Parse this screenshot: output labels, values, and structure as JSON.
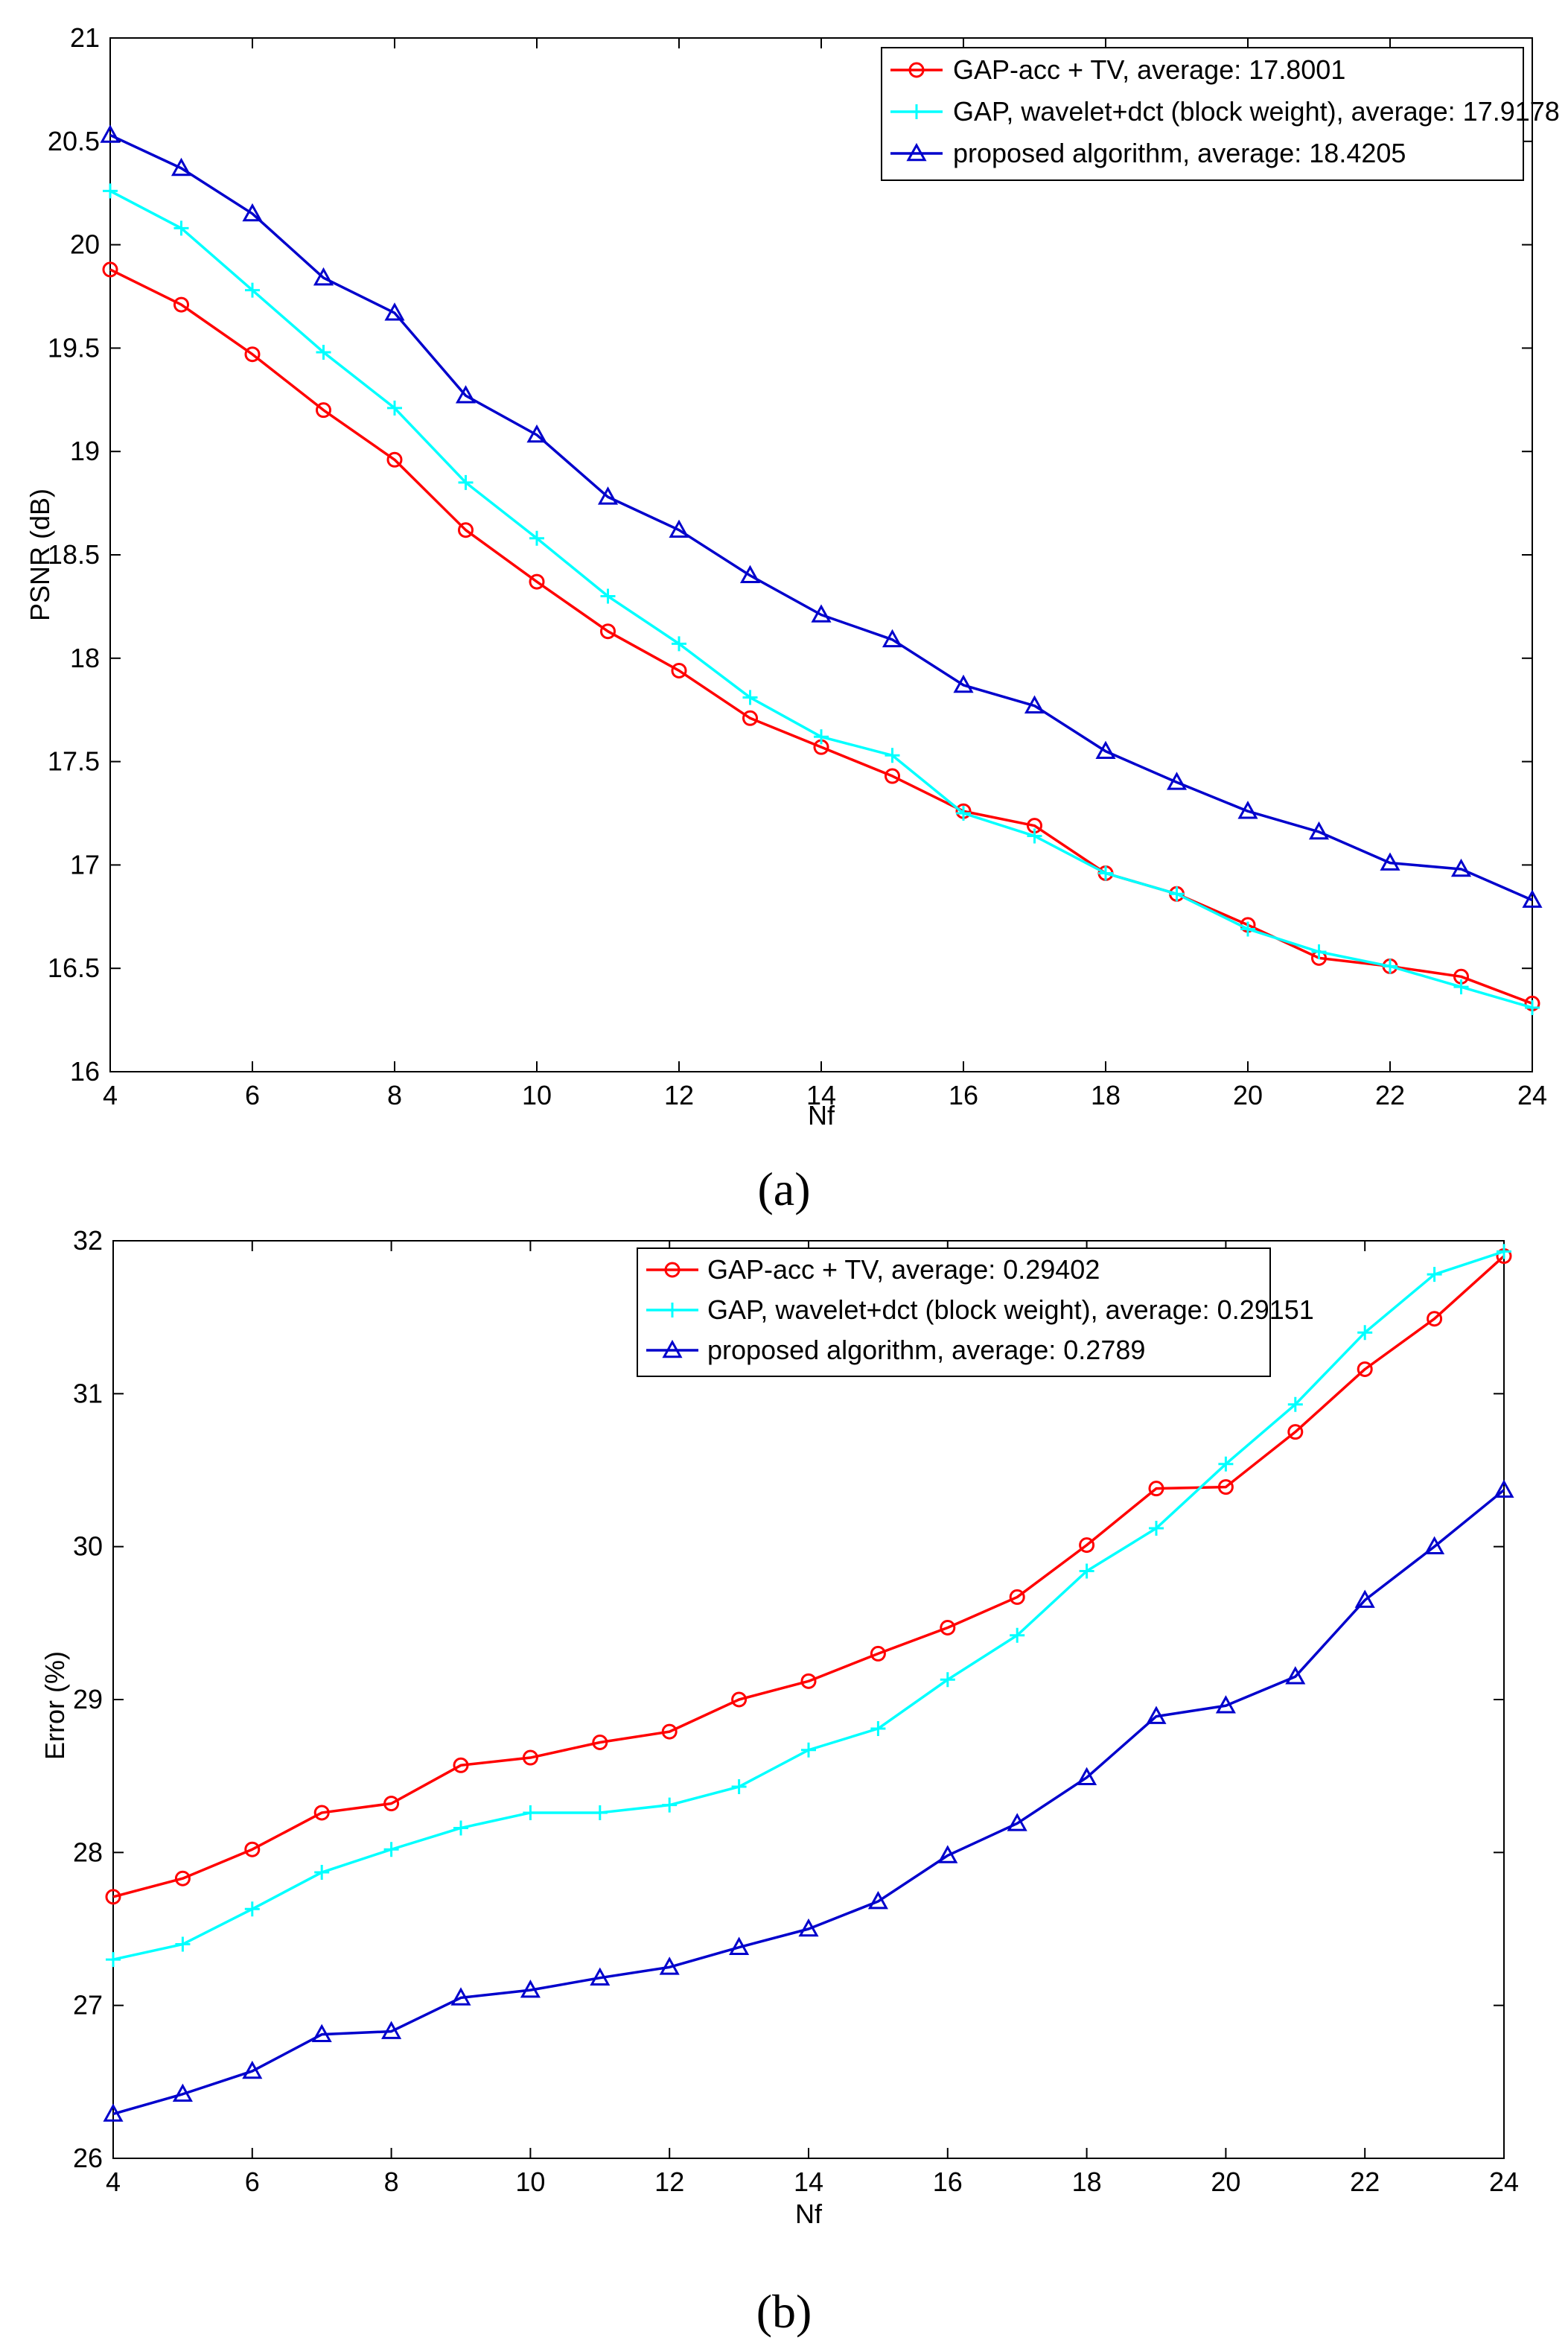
{
  "chart_data": [
    {
      "type": "line",
      "panel_label": "(a)",
      "title": "",
      "xlabel": "Nf",
      "ylabel": "PSNR (dB)",
      "xlim": [
        4,
        24
      ],
      "ylim": [
        16,
        21
      ],
      "xticks": [
        4,
        6,
        8,
        10,
        12,
        14,
        16,
        18,
        20,
        22,
        24
      ],
      "yticks": [
        16,
        16.5,
        17,
        17.5,
        18,
        18.5,
        19,
        19.5,
        20,
        20.5,
        21
      ],
      "ytick_labels": [
        "16",
        "16.5",
        "17",
        "17.5",
        "18",
        "18.5",
        "19",
        "19.5",
        "20",
        "20.5",
        "21"
      ],
      "legend_position": "top-right",
      "x": [
        4,
        5,
        6,
        7,
        8,
        9,
        10,
        11,
        12,
        13,
        14,
        15,
        16,
        17,
        18,
        19,
        20,
        21,
        22,
        23,
        24
      ],
      "series": [
        {
          "name": "GAP-acc + TV, average: 17.8001",
          "color": "#ff0000",
          "marker": "circle",
          "values": [
            19.88,
            19.71,
            19.47,
            19.2,
            18.96,
            18.62,
            18.37,
            18.13,
            17.94,
            17.71,
            17.57,
            17.43,
            17.26,
            17.19,
            16.96,
            16.86,
            16.71,
            16.55,
            16.51,
            16.46,
            16.33
          ]
        },
        {
          "name": "GAP, wavelet+dct (block weight), average: 17.9178",
          "color": "#00ffff",
          "marker": "plus",
          "values": [
            20.26,
            20.08,
            19.78,
            19.48,
            19.21,
            18.85,
            18.58,
            18.3,
            18.07,
            17.81,
            17.62,
            17.53,
            17.25,
            17.14,
            16.96,
            16.86,
            16.69,
            16.58,
            16.51,
            16.41,
            16.31
          ]
        },
        {
          "name": "proposed algorithm, average: 18.4205",
          "color": "#0000cc",
          "marker": "triangle",
          "values": [
            20.53,
            20.37,
            20.15,
            19.84,
            19.67,
            19.27,
            19.08,
            18.78,
            18.62,
            18.4,
            18.21,
            18.09,
            17.87,
            17.77,
            17.55,
            17.4,
            17.26,
            17.16,
            17.01,
            16.98,
            16.83
          ]
        }
      ]
    },
    {
      "type": "line",
      "panel_label": "(b)",
      "title": "",
      "xlabel": "Nf",
      "ylabel": "Error (%)",
      "xlim": [
        4,
        24
      ],
      "ylim": [
        26,
        32
      ],
      "xticks": [
        4,
        6,
        8,
        10,
        12,
        14,
        16,
        18,
        20,
        22,
        24
      ],
      "yticks": [
        26,
        27,
        28,
        29,
        30,
        31,
        32
      ],
      "ytick_labels": [
        "26",
        "27",
        "28",
        "29",
        "30",
        "31",
        "32"
      ],
      "legend_position": "top-center",
      "x": [
        4,
        5,
        6,
        7,
        8,
        9,
        10,
        11,
        12,
        13,
        14,
        15,
        16,
        17,
        18,
        19,
        20,
        21,
        22,
        23,
        24
      ],
      "series": [
        {
          "name": "GAP-acc + TV, average: 0.29402",
          "color": "#ff0000",
          "marker": "circle",
          "values": [
            27.71,
            27.83,
            28.02,
            28.26,
            28.32,
            28.57,
            28.62,
            28.72,
            28.79,
            29.0,
            29.12,
            29.3,
            29.47,
            29.67,
            30.01,
            30.38,
            30.39,
            30.75,
            31.16,
            31.49,
            31.9
          ]
        },
        {
          "name": "GAP, wavelet+dct (block weight), average: 0.29151",
          "color": "#00ffff",
          "marker": "plus",
          "values": [
            27.3,
            27.4,
            27.63,
            27.87,
            28.02,
            28.16,
            28.26,
            28.26,
            28.31,
            28.43,
            28.67,
            28.81,
            29.13,
            29.42,
            29.84,
            30.12,
            30.54,
            30.93,
            31.4,
            31.78,
            31.93
          ]
        },
        {
          "name": "proposed algorithm, average: 0.2789",
          "color": "#0000cc",
          "marker": "triangle",
          "values": [
            26.29,
            26.42,
            26.57,
            26.81,
            26.83,
            27.05,
            27.1,
            27.18,
            27.25,
            27.38,
            27.5,
            27.68,
            27.98,
            28.19,
            28.49,
            28.89,
            28.96,
            29.15,
            29.65,
            30.0,
            30.37
          ]
        }
      ]
    }
  ]
}
